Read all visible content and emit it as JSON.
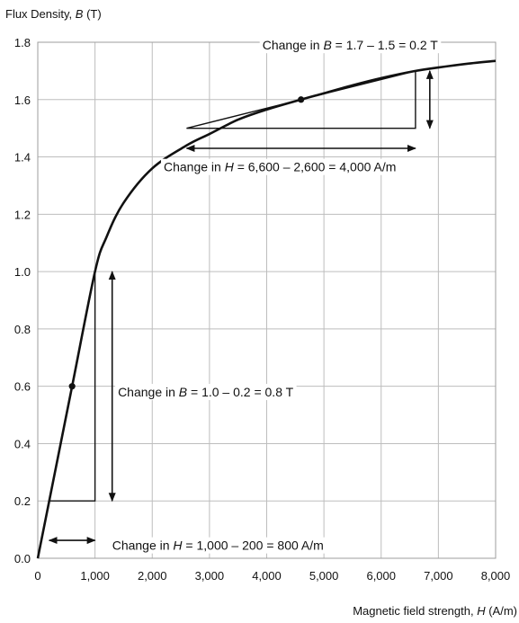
{
  "chart_data": {
    "type": "line",
    "ylabel_prefix": "Flux Density, ",
    "ylabel_symbol": "B",
    "ylabel_suffix": " (T)",
    "xlabel_prefix": "Magnetic field strength, ",
    "xlabel_symbol": "H",
    "xlabel_suffix": " (A/m)",
    "xlim": [
      0,
      8000
    ],
    "ylim": [
      0,
      1.8
    ],
    "grid": true,
    "x_ticks": [
      0,
      1000,
      2000,
      3000,
      4000,
      5000,
      6000,
      7000,
      8000
    ],
    "x_tick_labels": [
      "0",
      "1,000",
      "2,000",
      "3,000",
      "4,000",
      "5,000",
      "6,000",
      "7,000",
      "8,000"
    ],
    "y_ticks": [
      0,
      0.2,
      0.4,
      0.6,
      0.8,
      1.0,
      1.2,
      1.4,
      1.6,
      1.8
    ],
    "y_tick_labels": [
      "0.0",
      "0.2",
      "0.4",
      "0.6",
      "0.8",
      "1.0",
      "1.2",
      "1.4",
      "1.6",
      "1.8"
    ],
    "series": [
      {
        "x": [
          0,
          200,
          600,
          1000,
          1200,
          1500,
          2000,
          2600,
          3000,
          3500,
          4000,
          4600,
          5000,
          5500,
          6000,
          6600,
          7000,
          7500,
          8000
        ],
        "y": [
          0,
          0.2,
          0.6,
          1.0,
          1.12,
          1.24,
          1.36,
          1.44,
          1.48,
          1.53,
          1.565,
          1.6,
          1.622,
          1.65,
          1.675,
          1.7,
          1.712,
          1.725,
          1.735
        ]
      }
    ],
    "points": [
      {
        "x": 600,
        "y": 0.6
      },
      {
        "x": 4600,
        "y": 1.6
      }
    ],
    "triangles": [
      {
        "points": [
          [
            200,
            0.2
          ],
          [
            1000,
            0.2
          ],
          [
            1000,
            1.0
          ]
        ]
      },
      {
        "points": [
          [
            2600,
            1.5
          ],
          [
            6600,
            1.5
          ],
          [
            6600,
            1.7
          ]
        ]
      }
    ],
    "arrows": [
      {
        "from": [
          200,
          0.0625
        ],
        "to": [
          1000,
          0.0625
        ]
      },
      {
        "from": [
          1300,
          0.2
        ],
        "to": [
          1300,
          1.0
        ]
      },
      {
        "from": [
          2600,
          1.43
        ],
        "to": [
          6600,
          1.43
        ]
      },
      {
        "from": [
          6850,
          1.5
        ],
        "to": [
          6850,
          1.7
        ]
      }
    ],
    "annotations": [
      {
        "prefix": "Change in ",
        "symbol": "B",
        "suffix": " = 1.7 – 1.5 = 0.2 T",
        "x": 3925,
        "y": 1.79
      },
      {
        "prefix": "Change in ",
        "symbol": "H",
        "suffix": " = 6,600 – 2,600 = 4,000 A/m",
        "x": 2200,
        "y": 1.365
      },
      {
        "prefix": "Change in ",
        "symbol": "B",
        "suffix": " = 1.0 – 0.2 = 0.8 T",
        "x": 1400,
        "y": 0.58
      },
      {
        "prefix": "Change in ",
        "symbol": "H",
        "suffix": " = 1,000 – 200 = 800 A/m",
        "x": 1300,
        "y": 0.045
      }
    ]
  }
}
